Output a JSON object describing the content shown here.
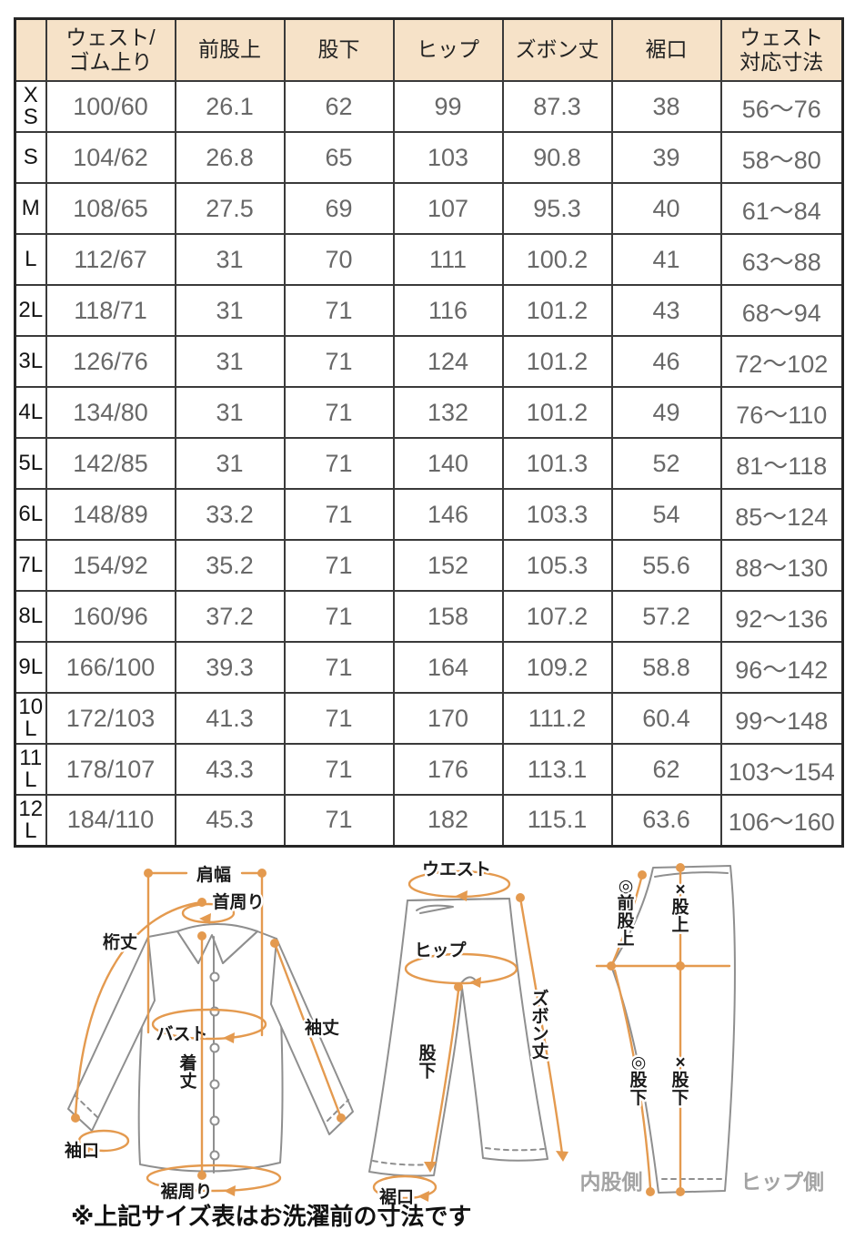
{
  "colors": {
    "header_bg": "#f6e2c8",
    "accent_orange": "#e49a4f",
    "garment_outline_gray": "#8f8f8f",
    "value_text_gray": "#686868"
  },
  "table": {
    "headers": [
      "ウェスト/\nゴム上り",
      "前股上",
      "股下",
      "ヒップ",
      "ズボン丈",
      "裾口",
      "ウェスト\n対応寸法"
    ],
    "corner_label": "",
    "rows": [
      {
        "size": "XS",
        "values": [
          "100/60",
          "26.1",
          "62",
          "99",
          "87.3",
          "38",
          "56〜76"
        ]
      },
      {
        "size": "S",
        "values": [
          "104/62",
          "26.8",
          "65",
          "103",
          "90.8",
          "39",
          "58〜80"
        ]
      },
      {
        "size": "M",
        "values": [
          "108/65",
          "27.5",
          "69",
          "107",
          "95.3",
          "40",
          "61〜84"
        ]
      },
      {
        "size": "L",
        "values": [
          "112/67",
          "31",
          "70",
          "111",
          "100.2",
          "41",
          "63〜88"
        ]
      },
      {
        "size": "2L",
        "values": [
          "118/71",
          "31",
          "71",
          "116",
          "101.2",
          "43",
          "68〜94"
        ]
      },
      {
        "size": "3L",
        "values": [
          "126/76",
          "31",
          "71",
          "124",
          "101.2",
          "46",
          "72〜102"
        ]
      },
      {
        "size": "4L",
        "values": [
          "134/80",
          "31",
          "71",
          "132",
          "101.2",
          "49",
          "76〜110"
        ]
      },
      {
        "size": "5L",
        "values": [
          "142/85",
          "31",
          "71",
          "140",
          "101.3",
          "52",
          "81〜118"
        ]
      },
      {
        "size": "6L",
        "values": [
          "148/89",
          "33.2",
          "71",
          "146",
          "103.3",
          "54",
          "85〜124"
        ]
      },
      {
        "size": "7L",
        "values": [
          "154/92",
          "35.2",
          "71",
          "152",
          "105.3",
          "55.6",
          "88〜130"
        ]
      },
      {
        "size": "8L",
        "values": [
          "160/96",
          "37.2",
          "71",
          "158",
          "107.2",
          "57.2",
          "92〜136"
        ]
      },
      {
        "size": "9L",
        "values": [
          "166/100",
          "39.3",
          "71",
          "164",
          "109.2",
          "58.8",
          "96〜142"
        ]
      },
      {
        "size": "10L",
        "values": [
          "172/103",
          "41.3",
          "71",
          "170",
          "111.2",
          "60.4",
          "99〜148"
        ]
      },
      {
        "size": "11L",
        "values": [
          "178/107",
          "43.3",
          "71",
          "176",
          "113.1",
          "62",
          "103〜154"
        ]
      },
      {
        "size": "12L",
        "values": [
          "184/110",
          "45.3",
          "71",
          "182",
          "115.1",
          "63.6",
          "106〜160"
        ]
      }
    ]
  },
  "diagrams": {
    "shirt": {
      "shoulder": "肩幅",
      "neck": "首周り",
      "yuki": "桁丈",
      "bust": "バスト",
      "sleeve": "袖丈",
      "body_length": "着丈",
      "cuff": "袖口",
      "hem_round": "裾周り"
    },
    "pants_front": {
      "waist": "ウエスト",
      "hip": "ヒップ",
      "pants_length": "ズボン丈",
      "inseam": "股下",
      "hem": "裾口"
    },
    "pants_side": {
      "front_rise": "◎前股上",
      "rise": "×股上",
      "inseam_front": "◎股下",
      "inseam_back": "×股下",
      "inner_side": "内股側",
      "hip_side": "ヒップ側"
    },
    "note": "※上記サイズ表はお洗濯前の寸法です"
  }
}
